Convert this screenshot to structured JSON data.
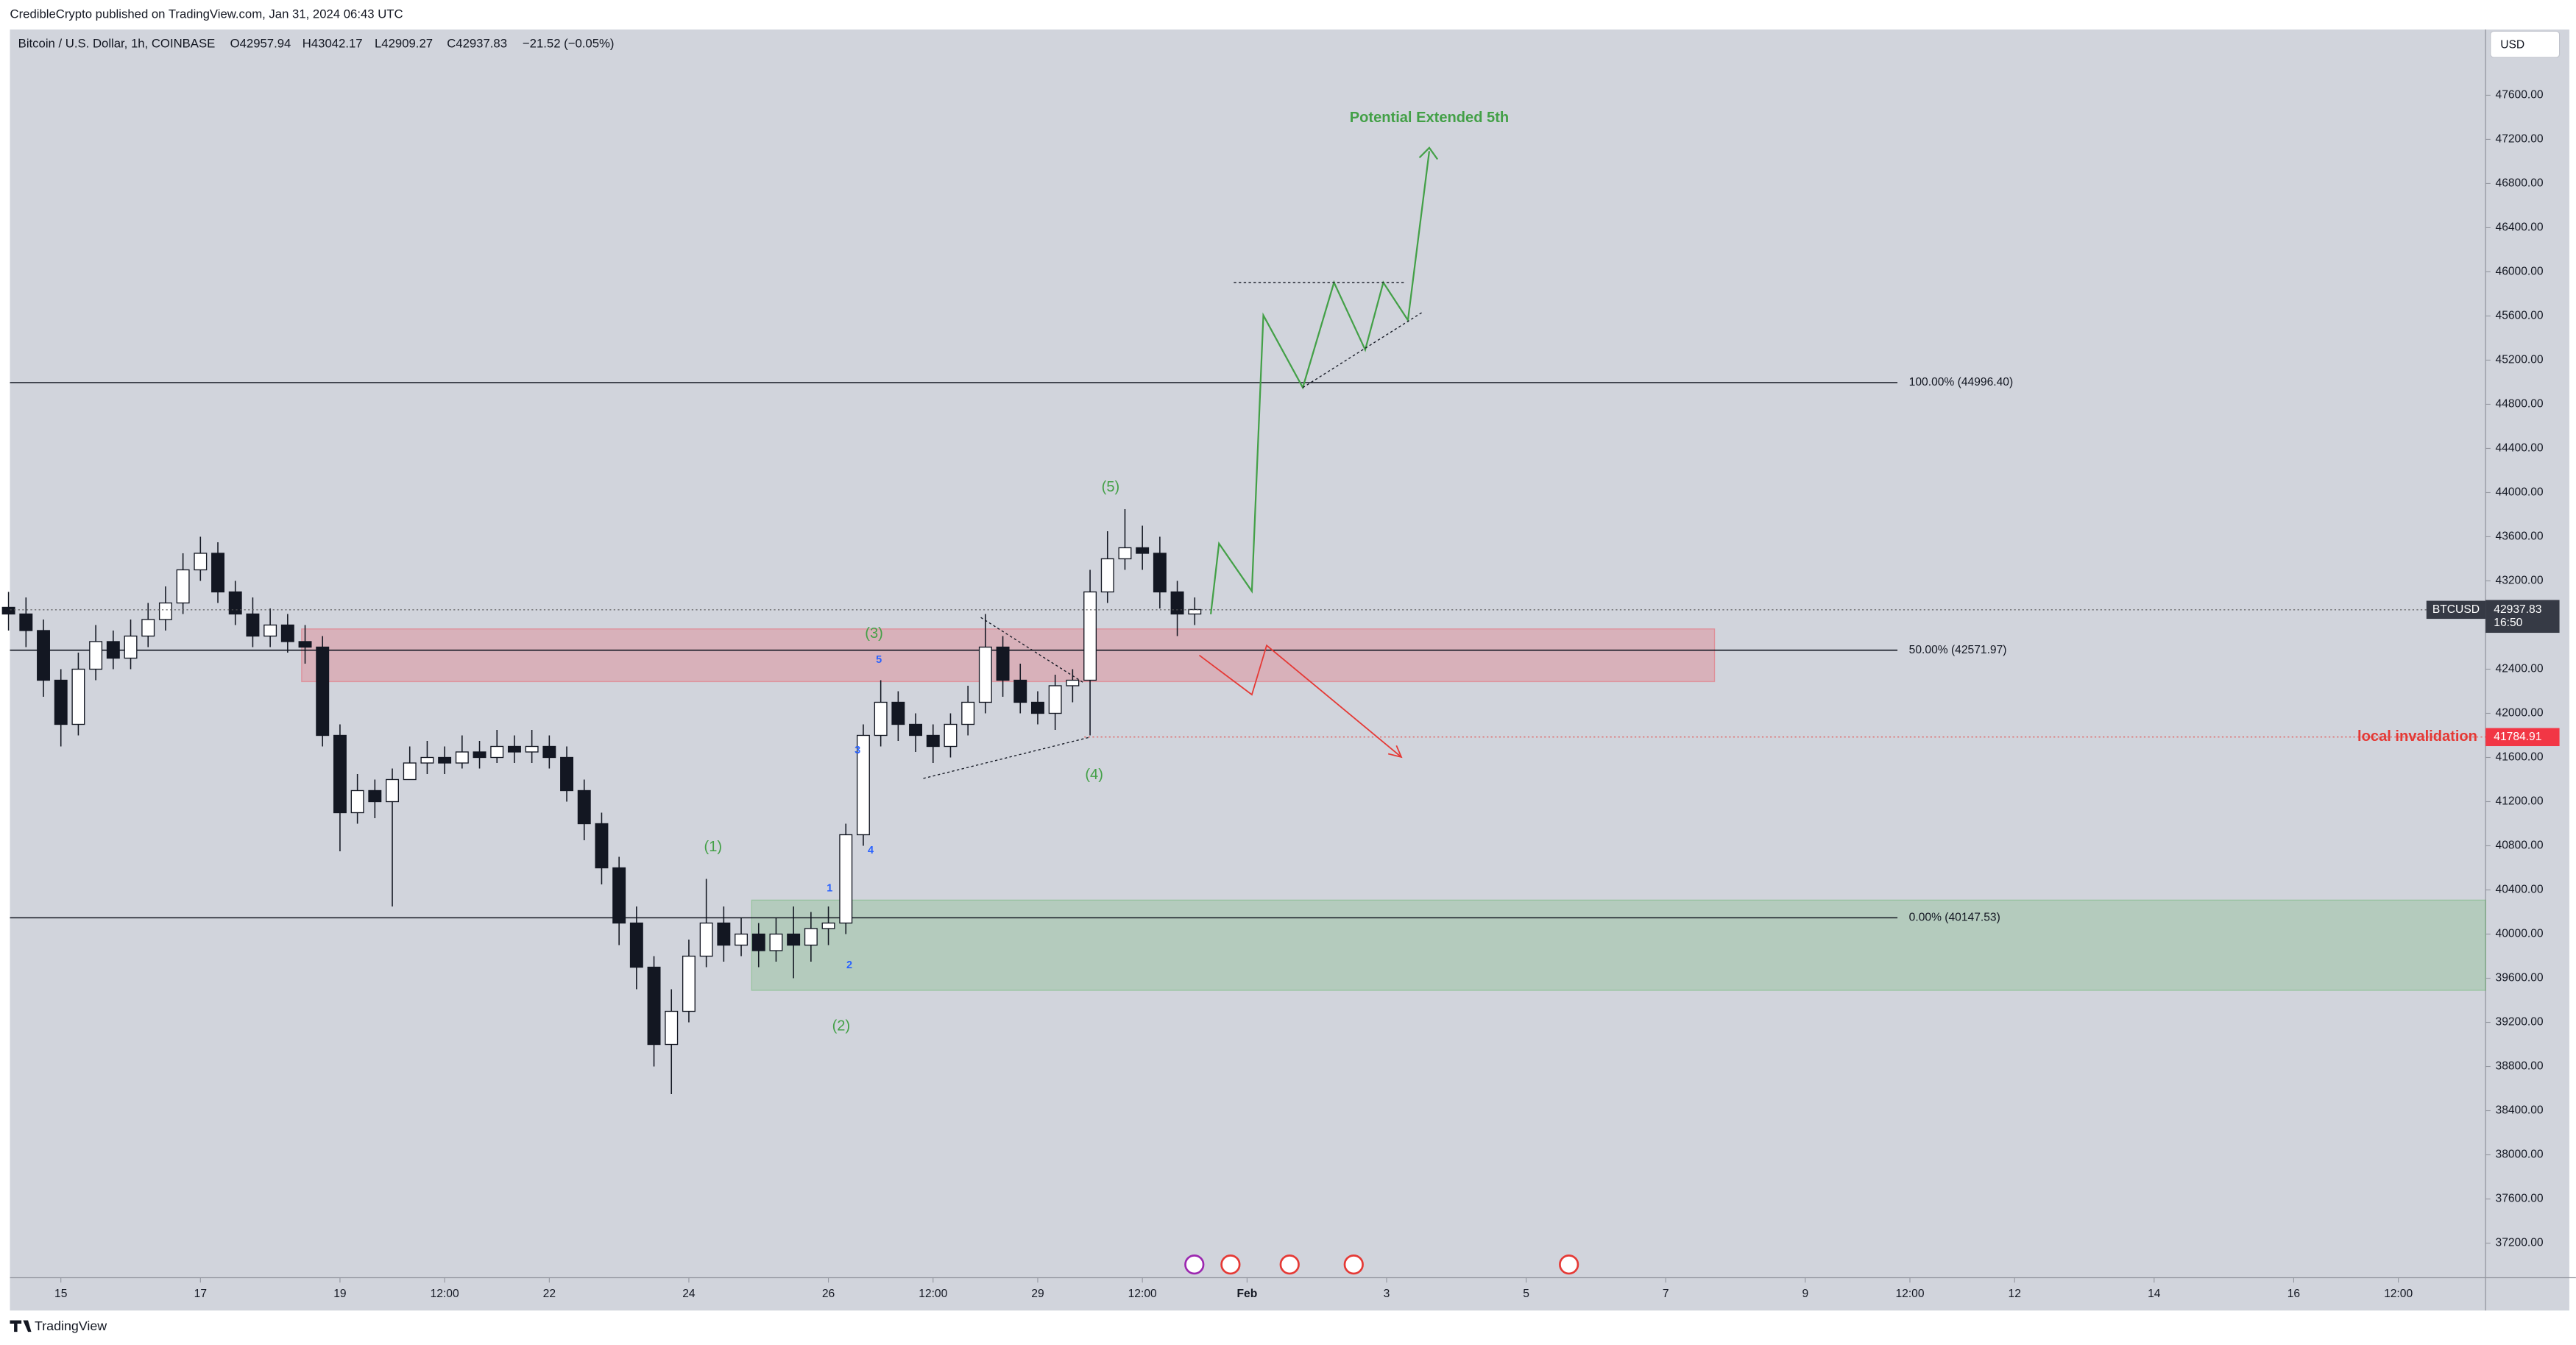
{
  "header": {
    "published": "CredibleCrypto published on TradingView.com, Jan 31, 2024 06:43 UTC",
    "currency": "USD",
    "brand": "TradingView"
  },
  "chart_data": {
    "type": "candlestick",
    "title": "Bitcoin / U.S. Dollar, 1h, COINBASE",
    "ohlc_legend": [
      "O42957.94",
      "H43042.17",
      "L42909.27",
      "C42937.83",
      "−21.52 (−0.05%)"
    ],
    "x": [
      14.25,
      14.5,
      14.75,
      15,
      15.25,
      15.5,
      15.75,
      16,
      16.25,
      16.5,
      16.75,
      17,
      17.25,
      17.5,
      17.75,
      18,
      18.25,
      18.5,
      18.75,
      19,
      19.25,
      19.5,
      19.75,
      20,
      20.25,
      20.5,
      20.75,
      21,
      21.25,
      21.5,
      21.75,
      22,
      22.25,
      22.5,
      22.75,
      23,
      23.25,
      23.5,
      23.75,
      24,
      24.25,
      24.5,
      24.75,
      25,
      25.25,
      25.5,
      25.75,
      26,
      26.25,
      26.5,
      26.75,
      27,
      27.25,
      27.5,
      27.75,
      28,
      28.25,
      28.5,
      28.75,
      29,
      29.25,
      29.5,
      29.75,
      30,
      30.25,
      30.5,
      30.75,
      31,
      31.25
    ],
    "open": [
      42960,
      42900,
      42750,
      42300,
      41900,
      42400,
      42650,
      42500,
      42700,
      42850,
      43000,
      43300,
      43450,
      43100,
      42900,
      42700,
      42800,
      42650,
      42600,
      41800,
      41100,
      41300,
      41200,
      41400,
      41550,
      41600,
      41550,
      41650,
      41600,
      41700,
      41650,
      41700,
      41600,
      41300,
      41000,
      40600,
      40100,
      39700,
      39000,
      39300,
      39800,
      40100,
      39900,
      40000,
      39850,
      40000,
      39900,
      40050,
      40100,
      40900,
      41800,
      42100,
      41900,
      41800,
      41700,
      41900,
      42100,
      42600,
      42300,
      42100,
      42000,
      42250,
      42300,
      43100,
      43400,
      43500,
      43450,
      43100,
      42900
    ],
    "high": [
      43100,
      43050,
      42850,
      42400,
      42550,
      42800,
      42750,
      42850,
      43000,
      43150,
      43450,
      43600,
      43550,
      43200,
      43050,
      42950,
      42900,
      42800,
      42700,
      41900,
      41450,
      41400,
      41500,
      41700,
      41750,
      41700,
      41800,
      41750,
      41850,
      41800,
      41850,
      41800,
      41700,
      41400,
      41100,
      40700,
      40250,
      39800,
      39500,
      39950,
      40500,
      40250,
      40150,
      40100,
      40150,
      40250,
      40200,
      40250,
      41000,
      41900,
      42300,
      42200,
      42000,
      41900,
      42000,
      42250,
      42900,
      42700,
      42450,
      42200,
      42350,
      42400,
      43300,
      43650,
      43850,
      43700,
      43600,
      43200,
      43050
    ],
    "low": [
      42750,
      42600,
      42150,
      41700,
      41800,
      42300,
      42400,
      42400,
      42600,
      42750,
      42900,
      43200,
      43000,
      42800,
      42600,
      42600,
      42550,
      42450,
      41700,
      40750,
      41000,
      41050,
      40250,
      41450,
      41450,
      41450,
      41500,
      41500,
      41550,
      41550,
      41550,
      41500,
      41200,
      40850,
      40450,
      39900,
      39500,
      38800,
      38550,
      39200,
      39700,
      39750,
      39800,
      39700,
      39750,
      39600,
      39750,
      39900,
      40000,
      40800,
      41700,
      41750,
      41650,
      41550,
      41600,
      41800,
      42000,
      42150,
      42000,
      41900,
      41850,
      42100,
      41800,
      43000,
      43300,
      43300,
      42950,
      42700,
      42800
    ],
    "close": [
      42900,
      42750,
      42300,
      41900,
      42400,
      42650,
      42500,
      42700,
      42850,
      43000,
      43300,
      43450,
      43100,
      42900,
      42700,
      42800,
      42650,
      42600,
      41800,
      41100,
      41300,
      41200,
      41400,
      41550,
      41600,
      41550,
      41650,
      41600,
      41700,
      41650,
      41700,
      41600,
      41300,
      41000,
      40600,
      40100,
      39700,
      39000,
      39300,
      39800,
      40100,
      39900,
      40000,
      39850,
      40000,
      39900,
      40050,
      40100,
      40900,
      41800,
      42100,
      41900,
      41800,
      41700,
      41900,
      42100,
      42600,
      42300,
      42100,
      42000,
      42250,
      42300,
      43100,
      43400,
      43500,
      43450,
      43100,
      42900,
      42940
    ],
    "up_color": "#ffffff",
    "down_color": "#131722",
    "xlim": [
      14.27,
      49.75
    ],
    "xticks": [
      15,
      17,
      19,
      {
        "value": 20.5,
        "label": "12:00"
      },
      22,
      24,
      26,
      {
        "value": 27.5,
        "label": "12:00"
      },
      29,
      {
        "value": 30.5,
        "label": "12:00"
      },
      {
        "value": 32,
        "label": "Feb"
      },
      {
        "value": 34,
        "label": "3"
      },
      {
        "value": 36,
        "label": "5"
      },
      {
        "value": 38,
        "label": "7"
      },
      {
        "value": 40,
        "label": "9"
      },
      {
        "value": 41.5,
        "label": "12:00"
      },
      {
        "value": 43,
        "label": "12"
      },
      {
        "value": 45,
        "label": "14"
      },
      {
        "value": 47,
        "label": "16"
      },
      {
        "value": 48.5,
        "label": "12:00"
      }
    ],
    "ylim": [
      36887,
      48195
    ],
    "yticks": [
      {
        "value": 37200,
        "label": "37200.00"
      },
      {
        "value": 37600,
        "label": "37600.00"
      },
      {
        "value": 38000,
        "label": "38000.00"
      },
      {
        "value": 38400,
        "label": "38400.00"
      },
      {
        "value": 38800,
        "label": "38800.00"
      },
      {
        "value": 39200,
        "label": "39200.00"
      },
      {
        "value": 39600,
        "label": "39600.00"
      },
      {
        "value": 40000,
        "label": "40000.00"
      },
      {
        "value": 40400,
        "label": "40400.00"
      },
      {
        "value": 40800,
        "label": "40800.00"
      },
      {
        "value": 41200,
        "label": "41200.00"
      },
      {
        "value": 41600,
        "label": "41600.00"
      },
      {
        "value": 42000,
        "label": "42000.00"
      },
      {
        "value": 42400,
        "label": "42400.00"
      },
      {
        "value": 42800,
        "label": "42800.00"
      },
      {
        "value": 43200,
        "label": "43200.00"
      },
      {
        "value": 43600,
        "label": "43600.00"
      },
      {
        "value": 44000,
        "label": "44000.00"
      },
      {
        "value": 44400,
        "label": "44400.00"
      },
      {
        "value": 44800,
        "label": "44800.00"
      },
      {
        "value": 45200,
        "label": "45200.00"
      },
      {
        "value": 45600,
        "label": "45600.00"
      },
      {
        "value": 46000,
        "label": "46000.00"
      },
      {
        "value": 46400,
        "label": "46400.00"
      },
      {
        "value": 46800,
        "label": "46800.00"
      },
      {
        "value": 47200,
        "label": "47200.00"
      },
      {
        "value": 47600,
        "label": "47600.00"
      }
    ],
    "grid": false,
    "levels": [
      {
        "value": 44996.4,
        "label": "100.00% (44996.40)"
      },
      {
        "value": 42571.97,
        "label": "50.00% (42571.97)"
      },
      {
        "value": 40147.53,
        "label": "0.00% (40147.53)"
      }
    ],
    "zones": [
      {
        "x": [
          18.45,
          38.7
        ],
        "y": [
          42287,
          42765
        ],
        "color": "#f23645"
      },
      {
        "x": [
          24.9,
          49.75
        ],
        "y": [
          39490,
          40308
        ],
        "color": "#4caf50"
      }
    ],
    "last_price": {
      "symbol": "BTCUSD",
      "value": 42937.83,
      "countdown": "16:50"
    },
    "invalidation": {
      "value": 41784.91,
      "label": "local invalidation"
    },
    "annotations": {
      "target": "Potential Extended 5th",
      "waves": [
        "(1)",
        "(2)",
        "(3)",
        "(4)",
        "(5)"
      ],
      "subwaves": [
        "1",
        "2",
        "3",
        "4",
        "5"
      ]
    }
  }
}
